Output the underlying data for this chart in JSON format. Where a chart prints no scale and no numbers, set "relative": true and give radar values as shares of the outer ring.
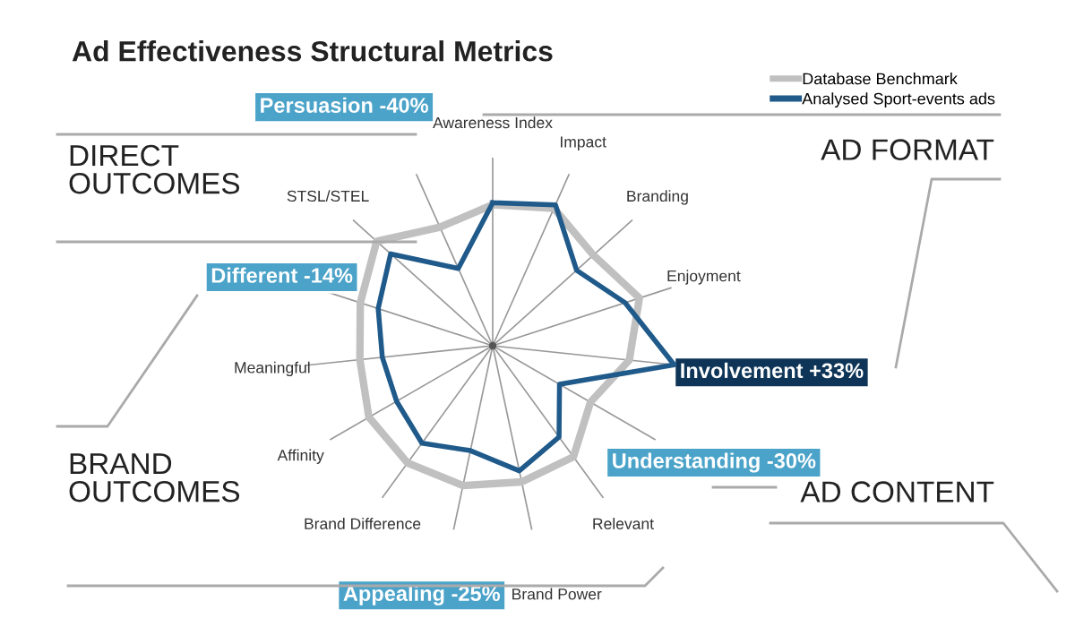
{
  "chart_data": {
    "type": "radar",
    "title": "Ad Effectiveness Structural Metrics",
    "categories": [
      "Awareness Index",
      "Impact",
      "Branding",
      "Enjoyment",
      "Involvement +33%",
      "Understanding -30%",
      "Relevant",
      "Brand Power",
      "Appealing -25%",
      "Brand Difference",
      "Affinity",
      "Meaningful",
      "Different -14%",
      "STSL/STEL",
      "Persuasion -40%"
    ],
    "relative": true,
    "grid": "x",
    "legend": "top right",
    "marker": "none",
    "line_style": "solid",
    "series": [
      {
        "name": "Database Benchmark",
        "color": "#c0c0c0",
        "values": [
          0.75,
          0.8,
          0.72,
          0.82,
          0.73,
          0.6,
          0.73,
          0.74,
          0.76,
          0.77,
          0.76,
          0.71,
          0.74,
          0.83,
          0.69
        ]
      },
      {
        "name": "Analysed Sport-events ads",
        "color": "#1f5a8a",
        "values": [
          0.76,
          0.82,
          0.6,
          0.74,
          0.97,
          0.41,
          0.6,
          0.68,
          0.57,
          0.64,
          0.59,
          0.59,
          0.64,
          0.73,
          0.45
        ]
      }
    ],
    "annotations": [
      "DIRECT\nOUTCOMES",
      "AD FORMAT",
      "BRAND\nOUTCOMES",
      "AD CONTENT"
    ]
  }
}
